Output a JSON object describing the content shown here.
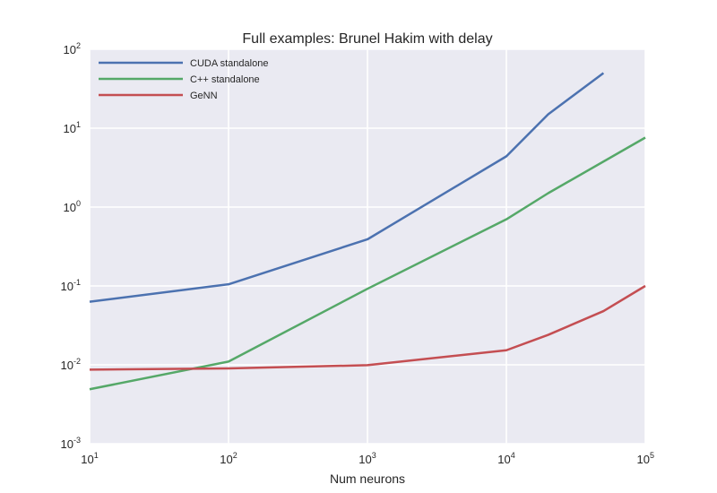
{
  "chart_data": {
    "type": "line",
    "title": "Full examples: Brunel Hakim with delay",
    "xlabel": "Num neurons",
    "ylabel": "",
    "x_scale": "log",
    "y_scale": "log",
    "xlim": [
      10,
      100000
    ],
    "ylim": [
      0.001,
      100
    ],
    "x_ticks": [
      {
        "base": "10",
        "exp": "1",
        "value": 10
      },
      {
        "base": "10",
        "exp": "2",
        "value": 100
      },
      {
        "base": "10",
        "exp": "3",
        "value": 1000
      },
      {
        "base": "10",
        "exp": "4",
        "value": 10000
      },
      {
        "base": "10",
        "exp": "5",
        "value": 100000
      }
    ],
    "y_ticks": [
      {
        "base": "10",
        "exp": "-3",
        "value": 0.001
      },
      {
        "base": "10",
        "exp": "-2",
        "value": 0.01
      },
      {
        "base": "10",
        "exp": "-1",
        "value": 0.1
      },
      {
        "base": "10",
        "exp": "0",
        "value": 1
      },
      {
        "base": "10",
        "exp": "1",
        "value": 10
      },
      {
        "base": "10",
        "exp": "2",
        "value": 100
      }
    ],
    "grid": true,
    "legend_position": "top-left",
    "series": [
      {
        "name": "CUDA standalone",
        "color": "#4c72b0",
        "x": [
          10,
          100,
          1000,
          10000,
          20000,
          50000
        ],
        "y": [
          0.063,
          0.105,
          0.39,
          4.4,
          15,
          50
        ]
      },
      {
        "name": "C++ standalone",
        "color": "#55a868",
        "x": [
          10,
          100,
          1000,
          10000,
          20000,
          100000
        ],
        "y": [
          0.0049,
          0.011,
          0.092,
          0.7,
          1.5,
          7.6
        ]
      },
      {
        "name": "GeNN",
        "color": "#c44e52",
        "x": [
          10,
          100,
          1000,
          10000,
          20000,
          50000,
          100000
        ],
        "y": [
          0.0087,
          0.009,
          0.0099,
          0.0153,
          0.024,
          0.048,
          0.1
        ]
      }
    ]
  }
}
